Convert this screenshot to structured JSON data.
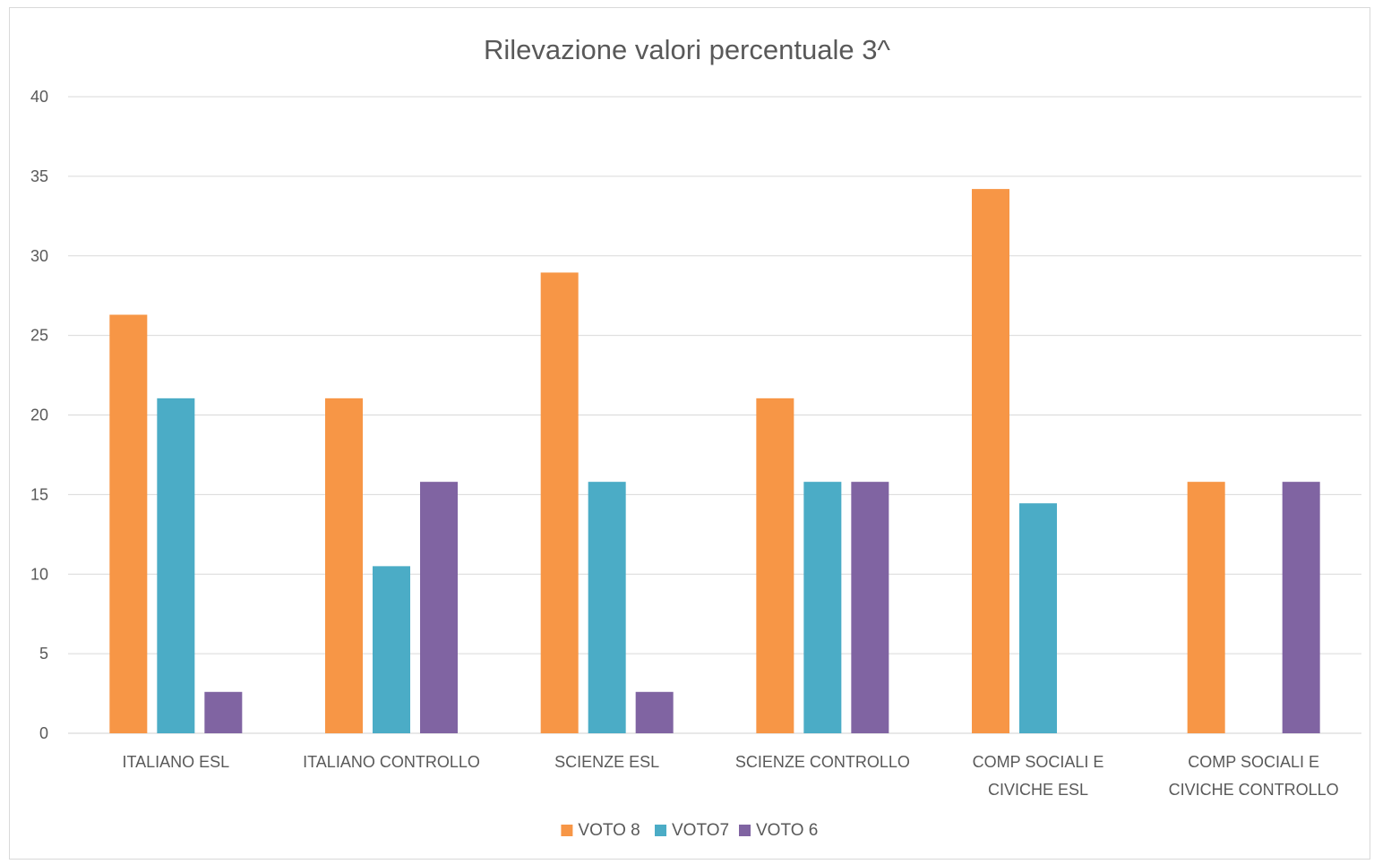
{
  "chart_data": {
    "type": "bar",
    "title": "Rilevazione valori percentuale 3^",
    "xlabel": "",
    "ylabel": "",
    "ylim": [
      0,
      40
    ],
    "yticks": [
      "0",
      "5",
      "10",
      "15",
      "20",
      "25",
      "30",
      "35",
      "40"
    ],
    "grid": true,
    "legend_position": "bottom",
    "categories": [
      [
        "ITALIANO ESL"
      ],
      [
        "ITALIANO CONTROLLO"
      ],
      [
        "SCIENZE ESL"
      ],
      [
        "SCIENZE CONTROLLO"
      ],
      [
        "COMP SOCIALI E",
        "CIVICHE ESL"
      ],
      [
        "COMP SOCIALI E",
        "CIVICHE CONTROLLO"
      ]
    ],
    "series": [
      {
        "name": "VOTO 8",
        "color": "#F79646",
        "values": [
          26.3,
          21.05,
          28.95,
          21.05,
          34.2,
          15.8
        ]
      },
      {
        "name": "VOTO7",
        "color": "#4BACC6",
        "values": [
          21.05,
          10.5,
          15.8,
          15.8,
          14.45,
          0
        ]
      },
      {
        "name": "VOTO 6",
        "color": "#8064A2",
        "values": [
          2.6,
          15.8,
          2.6,
          15.8,
          0,
          15.8
        ]
      }
    ]
  }
}
